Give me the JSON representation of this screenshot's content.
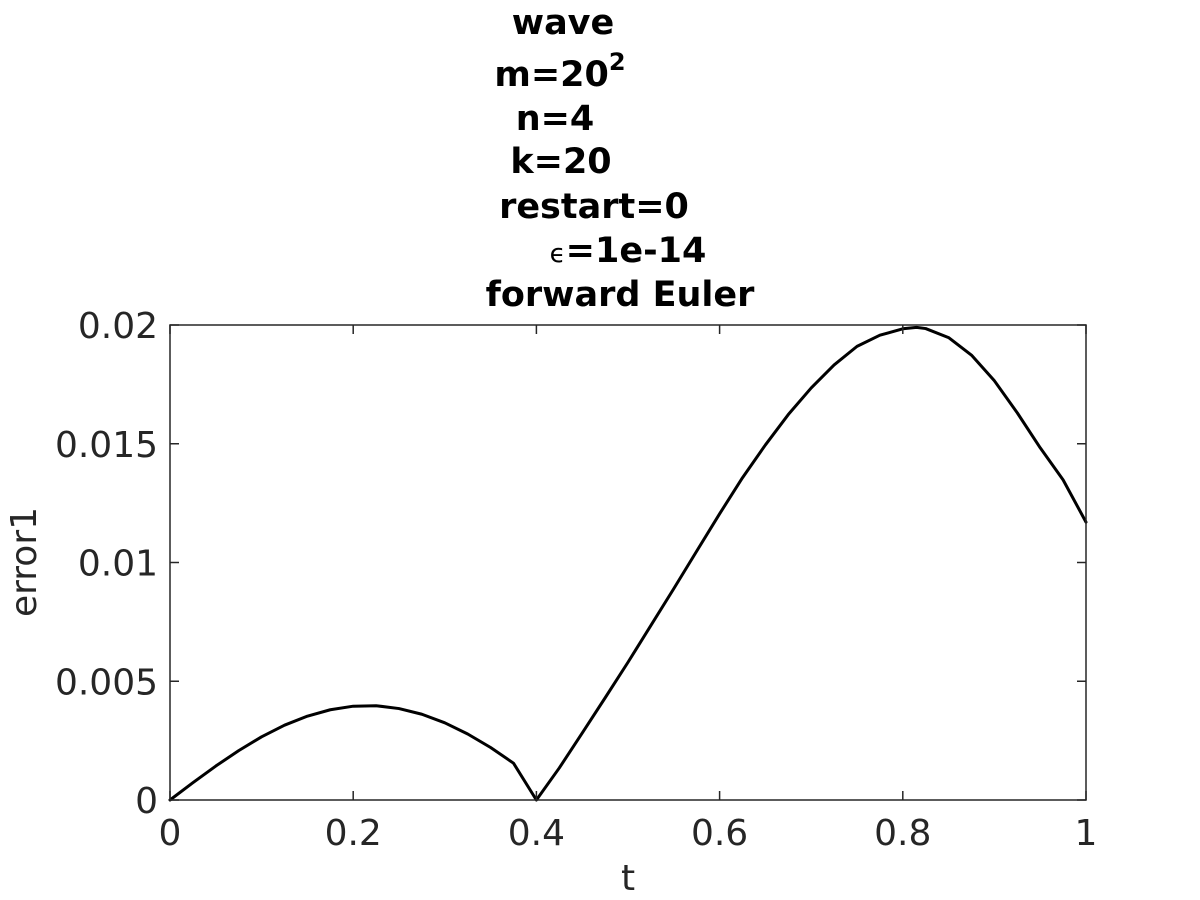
{
  "chart_data": {
    "type": "line",
    "title_lines": [
      {
        "text": "wave"
      },
      {
        "text": "m=20",
        "superscript": "2"
      },
      {
        "text": "n=4"
      },
      {
        "text": "k=20"
      },
      {
        "text": "restart=0"
      },
      {
        "text": "=1e-14",
        "symbol": "ϵ"
      },
      {
        "text": "forward Euler"
      }
    ],
    "xlabel": "t",
    "ylabel": "error1",
    "xlim": [
      0,
      1
    ],
    "ylim": [
      0,
      0.02
    ],
    "xticks": [
      0,
      0.2,
      0.4,
      0.6,
      0.8,
      1
    ],
    "xtick_labels": [
      "0",
      "0.2",
      "0.4",
      "0.6",
      "0.8",
      "1"
    ],
    "yticks": [
      0,
      0.005,
      0.01,
      0.015,
      0.02
    ],
    "ytick_labels": [
      "0",
      "0.005",
      "0.01",
      "0.015",
      "0.02"
    ],
    "grid": false,
    "line_color": "#000000",
    "axis_color": "#262626",
    "series": [
      {
        "x": [
          0,
          0.025,
          0.05,
          0.075,
          0.1,
          0.125,
          0.15,
          0.175,
          0.2,
          0.225,
          0.25,
          0.275,
          0.3,
          0.325,
          0.35,
          0.375,
          0.4,
          0.425,
          0.45,
          0.475,
          0.5,
          0.525,
          0.55,
          0.575,
          0.6,
          0.625,
          0.65,
          0.675,
          0.7,
          0.725,
          0.75,
          0.775,
          0.8,
          0.815,
          0.825,
          0.85,
          0.875,
          0.9,
          0.925,
          0.95,
          0.975,
          1.0
        ],
        "y": [
          0,
          0.00073,
          0.00143,
          0.00208,
          0.00266,
          0.00315,
          0.00353,
          0.0038,
          0.00395,
          0.00397,
          0.00385,
          0.00361,
          0.00325,
          0.00278,
          0.00221,
          0.00155,
          0,
          0.00135,
          0.00282,
          0.0043,
          0.0058,
          0.00735,
          0.0089,
          0.01048,
          0.01205,
          0.01357,
          0.01495,
          0.01623,
          0.01735,
          0.01832,
          0.0191,
          0.01957,
          0.01984,
          0.0199,
          0.01985,
          0.01947,
          0.01873,
          0.01765,
          0.0163,
          0.01483,
          0.01348,
          0.0117
        ]
      }
    ]
  }
}
